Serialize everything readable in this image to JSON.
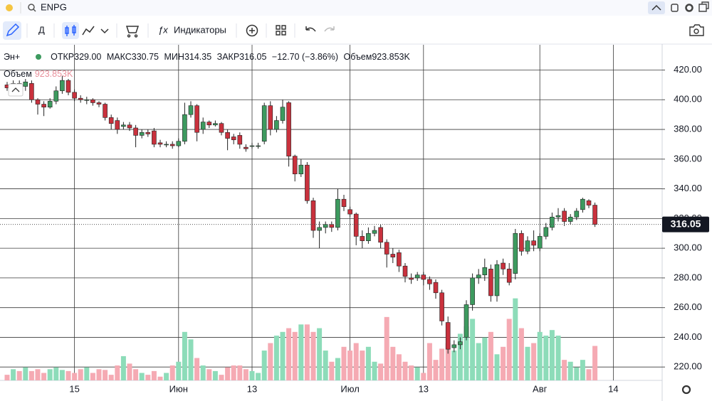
{
  "topbar": {
    "symbol": "ENPG"
  },
  "toolbar": {
    "interval": "Д",
    "indicators": "Индикаторы"
  },
  "legend": {
    "symbol": "Эн+",
    "open_label": "ОТКР",
    "open": "329.00",
    "high_label": "МАКС",
    "high": "330.75",
    "low_label": "МИН",
    "low": "314.35",
    "close_label": "ЗАКР",
    "close": "316.05",
    "change": "−12.70 (−3.86%)",
    "volume_label": "Объем",
    "volume": "923.853K"
  },
  "chart_data": {
    "type": "candlestick",
    "categories": [
      null,
      null,
      null,
      null,
      null,
      null,
      null,
      null,
      null,
      null,
      null,
      "15",
      null,
      null,
      null,
      null,
      null,
      null,
      null,
      null,
      null,
      null,
      null,
      null,
      null,
      null,
      null,
      null,
      "Июн",
      null,
      null,
      null,
      null,
      null,
      null,
      null,
      null,
      null,
      null,
      null,
      "13",
      null,
      null,
      null,
      null,
      null,
      null,
      null,
      null,
      null,
      null,
      null,
      null,
      null,
      null,
      null,
      "Июл",
      null,
      null,
      null,
      null,
      null,
      null,
      null,
      null,
      null,
      null,
      null,
      "13",
      null,
      null,
      null,
      null,
      null,
      null,
      null,
      null,
      null,
      null,
      null,
      null,
      null,
      null,
      null,
      null,
      null,
      null,
      "Авг",
      null,
      null,
      null,
      null,
      null,
      null,
      null,
      null,
      null,
      null,
      null,
      "14"
    ],
    "open": [
      410,
      408,
      411,
      409,
      411,
      400,
      397,
      395,
      399,
      406,
      413,
      405,
      401,
      400,
      400,
      398,
      397,
      388,
      386,
      382,
      383,
      381,
      376,
      378,
      379,
      371,
      370,
      370,
      369,
      372,
      390,
      396,
      380,
      385,
      383,
      384,
      378,
      375,
      376,
      368,
      369,
      369,
      372,
      396,
      380,
      386,
      398,
      362,
      350,
      356,
      332,
      312,
      314,
      316,
      314,
      333,
      326,
      323,
      308,
      305,
      310,
      314,
      304,
      296,
      297,
      288,
      280,
      280,
      282,
      279,
      277,
      270,
      250,
      233,
      235,
      240,
      262,
      280,
      282,
      286,
      268,
      290,
      286,
      283,
      310,
      298,
      305,
      300,
      308,
      314,
      321,
      325,
      318,
      321,
      326,
      332,
      329,
      null,
      null,
      null
    ],
    "high": [
      412,
      413,
      413,
      414,
      413,
      401,
      399,
      401,
      409,
      416,
      414,
      407,
      403,
      402,
      401,
      399,
      398,
      390,
      388,
      385,
      385,
      383,
      380,
      380,
      381,
      373,
      372,
      372,
      374,
      398,
      399,
      397,
      388,
      386,
      386,
      385,
      380,
      377,
      378,
      370,
      371,
      371,
      398,
      399,
      389,
      400,
      399,
      363,
      360,
      358,
      334,
      318,
      318,
      318,
      340,
      336,
      328,
      324,
      312,
      314,
      315,
      316,
      306,
      300,
      299,
      290,
      283,
      284,
      284,
      281,
      279,
      272,
      254,
      238,
      240,
      265,
      283,
      286,
      293,
      289,
      292,
      293,
      290,
      313,
      312,
      308,
      312,
      310,
      317,
      324,
      327,
      327,
      323,
      327,
      334,
      333,
      330.75,
      null,
      null,
      null
    ],
    "low": [
      406,
      405,
      407,
      406,
      398,
      390,
      389,
      394,
      397,
      404,
      403,
      399,
      398,
      397,
      396,
      395,
      386,
      380,
      377,
      380,
      379,
      368,
      374,
      375,
      368,
      368,
      368,
      367,
      368,
      370,
      388,
      372,
      377,
      381,
      382,
      376,
      366,
      370,
      367,
      365,
      367,
      367,
      370,
      376,
      378,
      384,
      355,
      345,
      348,
      330,
      307,
      300,
      310,
      311,
      312,
      325,
      321,
      302,
      300,
      303,
      308,
      300,
      287,
      290,
      284,
      277,
      276,
      278,
      275,
      272,
      266,
      248,
      229,
      230,
      232,
      238,
      258,
      276,
      278,
      264,
      264,
      282,
      275,
      279,
      295,
      296,
      298,
      298,
      306,
      312,
      318,
      315,
      316,
      319,
      324,
      327,
      314.35,
      null,
      null,
      null
    ],
    "close": [
      408,
      411,
      409,
      412,
      400,
      397,
      395,
      399,
      406,
      413,
      405,
      401,
      400,
      400,
      398,
      397,
      388,
      384,
      380,
      383,
      381,
      376,
      378,
      377,
      370,
      370,
      370,
      369,
      372,
      390,
      396,
      378,
      385,
      383,
      384,
      378,
      374,
      373,
      370,
      367,
      369,
      369,
      396,
      380,
      386,
      395,
      362,
      350,
      356,
      332,
      312,
      314,
      316,
      314,
      333,
      328,
      323,
      308,
      305,
      310,
      312,
      304,
      296,
      294,
      288,
      281,
      279,
      282,
      279,
      276,
      270,
      251,
      232,
      235,
      237,
      262,
      280,
      282,
      287,
      268,
      289,
      286,
      277,
      310,
      298,
      305,
      302,
      308,
      314,
      321,
      322,
      318,
      321,
      325,
      333,
      329,
      316.05,
      null,
      null,
      null
    ],
    "volume": [
      150,
      300,
      250,
      350,
      250,
      300,
      200,
      300,
      350,
      280,
      250,
      200,
      300,
      350,
      200,
      300,
      280,
      150,
      400,
      650,
      450,
      300,
      200,
      150,
      250,
      100,
      200,
      400,
      500,
      1300,
      1100,
      600,
      400,
      300,
      250,
      150,
      350,
      400,
      400,
      300,
      250,
      200,
      800,
      1000,
      1200,
      1300,
      1400,
      1300,
      1500,
      1500,
      1300,
      1400,
      800,
      500,
      600,
      900,
      800,
      1000,
      800,
      900,
      500,
      450,
      1700,
      900,
      700,
      500,
      400,
      350,
      200,
      1000,
      550,
      850,
      1000,
      800,
      1250,
      1450,
      1650,
      1000,
      1150,
      1300,
      700,
      900,
      1650,
      2200,
      1400,
      900,
      1000,
      1300,
      1200,
      1350,
      1200,
      550,
      500,
      350,
      550,
      300,
      923.853,
      null,
      null,
      null
    ],
    "volume_lim": [
      0,
      9000
    ],
    "ylim": [
      211,
      437
    ],
    "yticks": [
      {
        "value": 220,
        "label": "220.00"
      },
      {
        "value": 240,
        "label": "240.00"
      },
      {
        "value": 260,
        "label": "260.00"
      },
      {
        "value": 280,
        "label": "280.00"
      },
      {
        "value": 300,
        "label": "300.00"
      },
      {
        "value": 320,
        "label": "320.00"
      },
      {
        "value": 340,
        "label": "340.00"
      },
      {
        "value": 360,
        "label": "360.00"
      },
      {
        "value": 380,
        "label": "380.00"
      },
      {
        "value": 400,
        "label": "400.00"
      },
      {
        "value": 420,
        "label": "420.00"
      }
    ],
    "up_color": "#3d9a5f",
    "down_color": "#c9313d",
    "volume_up_color": "#8ddcb9",
    "volume_down_color": "#f5aab3",
    "grid": true
  }
}
